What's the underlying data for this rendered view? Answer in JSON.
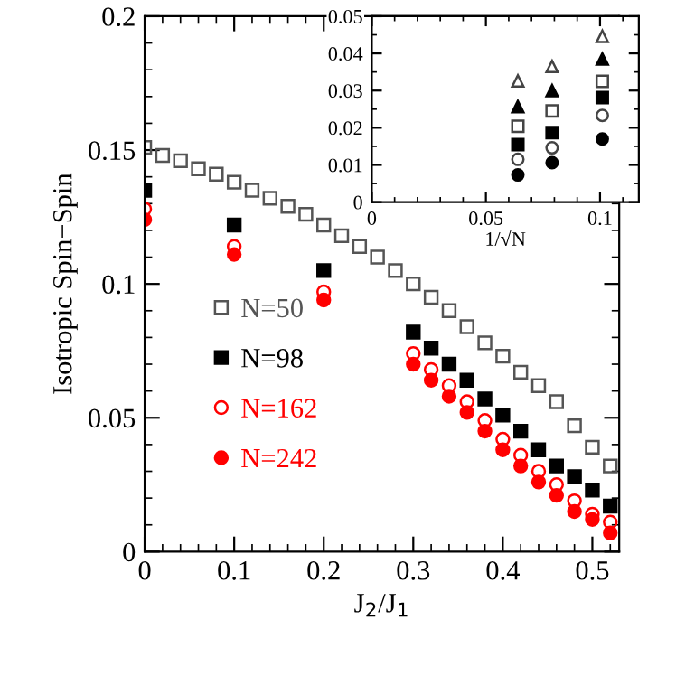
{
  "chart_data": [
    {
      "type": "scatter",
      "xlabel": "J$_{2}$/J$_{1}$",
      "ylabel": "Isotropic Spin−Spin",
      "xlim": [
        0,
        0.53
      ],
      "ylim": [
        0,
        0.2
      ],
      "xticks": [
        0,
        0.1,
        0.2,
        0.3,
        0.4,
        0.5
      ],
      "yticks": [
        0,
        0.05,
        0.1,
        0.15,
        0.2
      ],
      "legend": "lower left",
      "series": [
        {
          "name": "N=50",
          "color": "#555555",
          "marker": "square",
          "x": [
            0,
            0.02,
            0.04,
            0.06,
            0.08,
            0.1,
            0.12,
            0.14,
            0.16,
            0.18,
            0.2,
            0.22,
            0.24,
            0.26,
            0.28,
            0.3,
            0.32,
            0.34,
            0.36,
            0.38,
            0.4,
            0.42,
            0.44,
            0.46,
            0.48,
            0.5,
            0.52
          ],
          "values": [
            0.151,
            0.148,
            0.146,
            0.143,
            0.141,
            0.138,
            0.135,
            0.132,
            0.129,
            0.126,
            0.122,
            0.118,
            0.114,
            0.11,
            0.105,
            0.1,
            0.095,
            0.09,
            0.084,
            0.078,
            0.073,
            0.067,
            0.062,
            0.056,
            0.047,
            0.039,
            0.032
          ]
        },
        {
          "name": "N=98",
          "color": "#000000",
          "marker": "square",
          "x": [
            0,
            0.1,
            0.2,
            0.3,
            0.32,
            0.34,
            0.36,
            0.38,
            0.4,
            0.42,
            0.44,
            0.46,
            0.48,
            0.5,
            0.52
          ],
          "values": [
            0.135,
            0.122,
            0.105,
            0.082,
            0.076,
            0.07,
            0.064,
            0.057,
            0.051,
            0.045,
            0.038,
            0.032,
            0.028,
            0.023,
            0.017
          ]
        },
        {
          "name": "N=162",
          "color": "#ff0000",
          "marker": "circle",
          "x": [
            0,
            0.1,
            0.2,
            0.3,
            0.32,
            0.34,
            0.36,
            0.38,
            0.4,
            0.42,
            0.44,
            0.46,
            0.48,
            0.5,
            0.52
          ],
          "values": [
            0.128,
            0.114,
            0.097,
            0.074,
            0.068,
            0.062,
            0.056,
            0.049,
            0.042,
            0.036,
            0.03,
            0.025,
            0.019,
            0.014,
            0.011
          ]
        },
        {
          "name": "N=242",
          "color": "#ff0000",
          "marker": "circle",
          "x": [
            0,
            0.1,
            0.2,
            0.3,
            0.32,
            0.34,
            0.36,
            0.38,
            0.4,
            0.42,
            0.44,
            0.46,
            0.48,
            0.5,
            0.52
          ],
          "values": [
            0.124,
            0.111,
            0.094,
            0.07,
            0.064,
            0.058,
            0.052,
            0.045,
            0.038,
            0.032,
            0.026,
            0.021,
            0.015,
            0.012,
            0.007
          ]
        }
      ]
    },
    {
      "type": "scatter",
      "xlabel": "1/√N",
      "xlim": [
        0,
        0.117
      ],
      "ylim": [
        0,
        0.05
      ],
      "xticks": [
        0,
        0.05,
        0.1
      ],
      "yticks": [
        0,
        0.01,
        0.02,
        0.03,
        0.04,
        0.05
      ],
      "series": [
        {
          "color": "#444444",
          "marker": "triangle",
          "x": [
            0.064,
            0.079,
            0.101
          ],
          "values": [
            0.0326,
            0.0365,
            0.0446
          ]
        },
        {
          "color": "#000000",
          "marker": "triangle",
          "x": [
            0.064,
            0.079,
            0.101
          ],
          "values": [
            0.0257,
            0.03,
            0.0385
          ]
        },
        {
          "color": "#444444",
          "marker": "square",
          "x": [
            0.064,
            0.079,
            0.101
          ],
          "values": [
            0.0204,
            0.0245,
            0.0325
          ]
        },
        {
          "color": "#000000",
          "marker": "square",
          "x": [
            0.064,
            0.079,
            0.101
          ],
          "values": [
            0.0155,
            0.0187,
            0.0281
          ]
        },
        {
          "color": "#444444",
          "marker": "circle",
          "x": [
            0.064,
            0.079,
            0.101
          ],
          "values": [
            0.0115,
            0.0146,
            0.0233
          ]
        },
        {
          "color": "#000000",
          "marker": "circle",
          "x": [
            0.064,
            0.079,
            0.101
          ],
          "values": [
            0.0073,
            0.0106,
            0.017
          ]
        }
      ]
    }
  ]
}
